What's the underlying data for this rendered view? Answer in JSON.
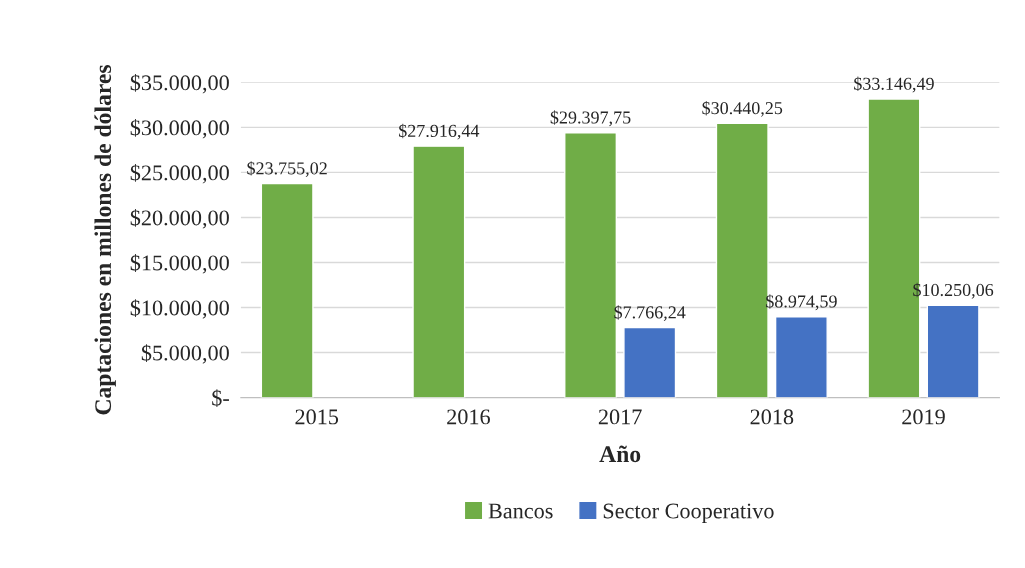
{
  "chart_data": {
    "type": "bar",
    "xlabel": "Año",
    "ylabel": "Captaciones en millones de dólares",
    "categories": [
      "2015",
      "2016",
      "2017",
      "2018",
      "2019"
    ],
    "series": [
      {
        "name": "Bancos",
        "color": "#70ad47",
        "values": [
          23755.02,
          27916.44,
          29397.75,
          30440.25,
          33146.49
        ],
        "value_labels": [
          "$23.755,02",
          "$27.916,44",
          "$29.397,75",
          "$30.440,25",
          "$33.146,49"
        ]
      },
      {
        "name": "Sector Cooperativo",
        "color": "#4472c4",
        "values": [
          null,
          null,
          7766.24,
          8974.59,
          10250.06
        ],
        "value_labels": [
          null,
          null,
          "$7.766,24",
          "$8.974,59",
          "$10.250,06"
        ]
      }
    ],
    "ylim": [
      0,
      35000
    ],
    "yticks": [
      {
        "value": 0,
        "label": "$-"
      },
      {
        "value": 5000,
        "label": "$5.000,00"
      },
      {
        "value": 10000,
        "label": "$10.000,00"
      },
      {
        "value": 15000,
        "label": "$15.000,00"
      },
      {
        "value": 20000,
        "label": "$20.000,00"
      },
      {
        "value": 25000,
        "label": "$25.000,00"
      },
      {
        "value": 30000,
        "label": "$30.000,00"
      },
      {
        "value": 35000,
        "label": "$35.000,00"
      }
    ],
    "grid": "y",
    "legend": "bottom"
  }
}
